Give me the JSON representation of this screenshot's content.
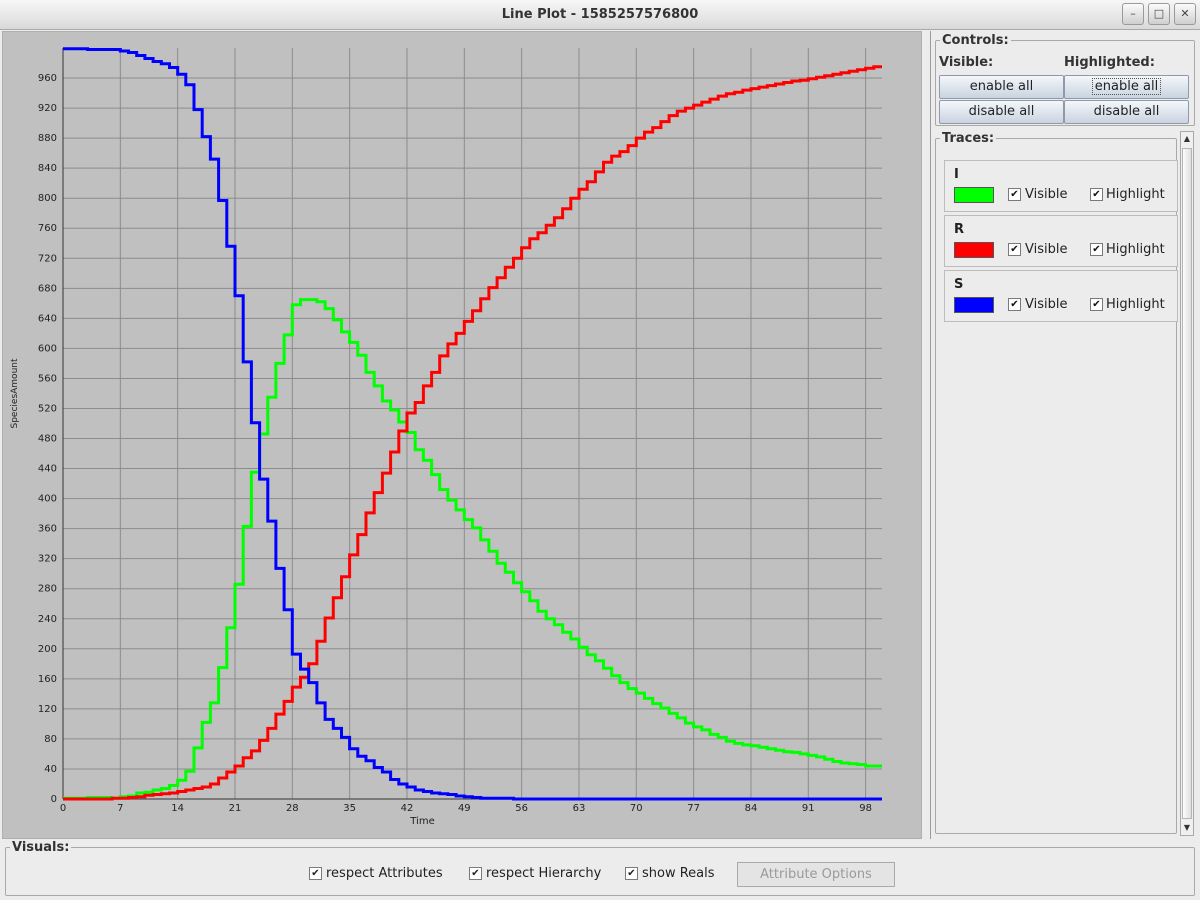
{
  "window": {
    "title": "Line Plot - 1585257576800",
    "buttons": {
      "minimize": "–",
      "maximize": "□",
      "close": "✕"
    }
  },
  "controls": {
    "legend": "Controls:",
    "visible_label": "Visible:",
    "highlighted_label": "Highlighted:",
    "visible_enable": "enable all",
    "visible_disable": "disable all",
    "highlighted_enable": "enable all",
    "highlighted_disable": "disable all"
  },
  "traces": {
    "legend": "Traces:",
    "items": [
      {
        "name": "I",
        "color": "#00ff00",
        "visible_label": "Visible",
        "highlight_label": "Highlight",
        "visible": true,
        "highlight": true
      },
      {
        "name": "R",
        "color": "#ff0000",
        "visible_label": "Visible",
        "highlight_label": "Highlight",
        "visible": true,
        "highlight": true
      },
      {
        "name": "S",
        "color": "#0000ff",
        "visible_label": "Visible",
        "highlight_label": "Highlight",
        "visible": true,
        "highlight": true
      }
    ]
  },
  "visuals": {
    "legend": "Visuals:",
    "respect_attributes": "respect Attributes",
    "respect_hierarchy": "respect Hierarchy",
    "show_reals": "show Reals",
    "attribute_options": "Attribute Options"
  },
  "chart_data": {
    "type": "line",
    "xlabel": "Time",
    "ylabel": "SpeciesAmount",
    "xlim": [
      0,
      100
    ],
    "ylim": [
      0,
      1000
    ],
    "xticks": [
      0,
      7,
      14,
      21,
      28,
      35,
      42,
      49,
      56,
      63,
      70,
      77,
      84,
      91,
      98
    ],
    "yticks": [
      0,
      40,
      80,
      120,
      160,
      200,
      240,
      280,
      320,
      360,
      400,
      440,
      480,
      520,
      560,
      600,
      640,
      680,
      720,
      760,
      800,
      840,
      880,
      920,
      960
    ],
    "grid": true,
    "step": true,
    "x": [
      0,
      1,
      2,
      3,
      4,
      5,
      6,
      7,
      8,
      9,
      10,
      11,
      12,
      13,
      14,
      15,
      16,
      17,
      18,
      19,
      20,
      21,
      22,
      23,
      24,
      25,
      26,
      27,
      28,
      29,
      30,
      31,
      32,
      33,
      34,
      35,
      36,
      37,
      38,
      39,
      40,
      41,
      42,
      43,
      44,
      45,
      46,
      47,
      48,
      49,
      50,
      51,
      52,
      53,
      54,
      55,
      56,
      57,
      58,
      59,
      60,
      61,
      62,
      63,
      64,
      65,
      66,
      67,
      68,
      69,
      70,
      71,
      72,
      73,
      74,
      75,
      76,
      77,
      78,
      79,
      80,
      81,
      82,
      83,
      84,
      85,
      86,
      87,
      88,
      89,
      90,
      91,
      92,
      93,
      94,
      95,
      96,
      97,
      98,
      99
    ],
    "series": [
      {
        "name": "I",
        "color": "#00ff00",
        "values": [
          1,
          1,
          1,
          2,
          2,
          2,
          1,
          3,
          4,
          8,
          9,
          12,
          14,
          18,
          25,
          37,
          68,
          102,
          128,
          175,
          228,
          286,
          363,
          435,
          486,
          535,
          580,
          618,
          658,
          665,
          665,
          662,
          653,
          638,
          622,
          608,
          591,
          568,
          550,
          530,
          518,
          502,
          488,
          465,
          451,
          432,
          412,
          398,
          385,
          372,
          361,
          345,
          330,
          314,
          302,
          288,
          276,
          264,
          250,
          240,
          232,
          222,
          213,
          202,
          192,
          184,
          174,
          164,
          155,
          147,
          141,
          134,
          127,
          121,
          114,
          108,
          101,
          96,
          92,
          86,
          82,
          77,
          74,
          72,
          71,
          69,
          67,
          65,
          63,
          62,
          60,
          58,
          56,
          53,
          50,
          48,
          47,
          46,
          44,
          44
        ]
      },
      {
        "name": "R",
        "color": "#ff0000",
        "values": [
          0,
          0,
          0,
          0,
          0,
          0,
          1,
          1,
          2,
          3,
          5,
          6,
          7,
          8,
          10,
          12,
          14,
          16,
          20,
          28,
          36,
          44,
          55,
          64,
          78,
          94,
          113,
          130,
          149,
          162,
          180,
          210,
          241,
          268,
          296,
          325,
          352,
          381,
          408,
          434,
          462,
          490,
          514,
          528,
          550,
          568,
          590,
          606,
          620,
          636,
          650,
          666,
          681,
          694,
          708,
          720,
          734,
          746,
          754,
          764,
          774,
          786,
          800,
          812,
          822,
          835,
          848,
          856,
          862,
          870,
          880,
          888,
          894,
          902,
          910,
          916,
          920,
          924,
          928,
          932,
          936,
          939,
          941,
          944,
          946,
          948,
          950,
          952,
          954,
          956,
          957,
          959,
          961,
          963,
          965,
          967,
          969,
          971,
          973,
          975
        ]
      },
      {
        "name": "S",
        "color": "#0000ff",
        "values": [
          999,
          999,
          999,
          998,
          998,
          998,
          998,
          996,
          994,
          990,
          986,
          982,
          979,
          974,
          965,
          951,
          918,
          882,
          852,
          797,
          736,
          670,
          582,
          501,
          426,
          370,
          307,
          252,
          193,
          173,
          155,
          128,
          106,
          94,
          82,
          67,
          57,
          51,
          42,
          36,
          26,
          20,
          16,
          12,
          10,
          8,
          7,
          6,
          4,
          3,
          2,
          1,
          1,
          1,
          1,
          0,
          0,
          0,
          0,
          0,
          0,
          0,
          0,
          0,
          0,
          0,
          0,
          0,
          0,
          0,
          0,
          0,
          0,
          0,
          0,
          0,
          0,
          0,
          0,
          0,
          0,
          0,
          0,
          0,
          0,
          0,
          0,
          0,
          0,
          0,
          0,
          0,
          0,
          0,
          0,
          0,
          0,
          0,
          0,
          0
        ]
      }
    ]
  }
}
